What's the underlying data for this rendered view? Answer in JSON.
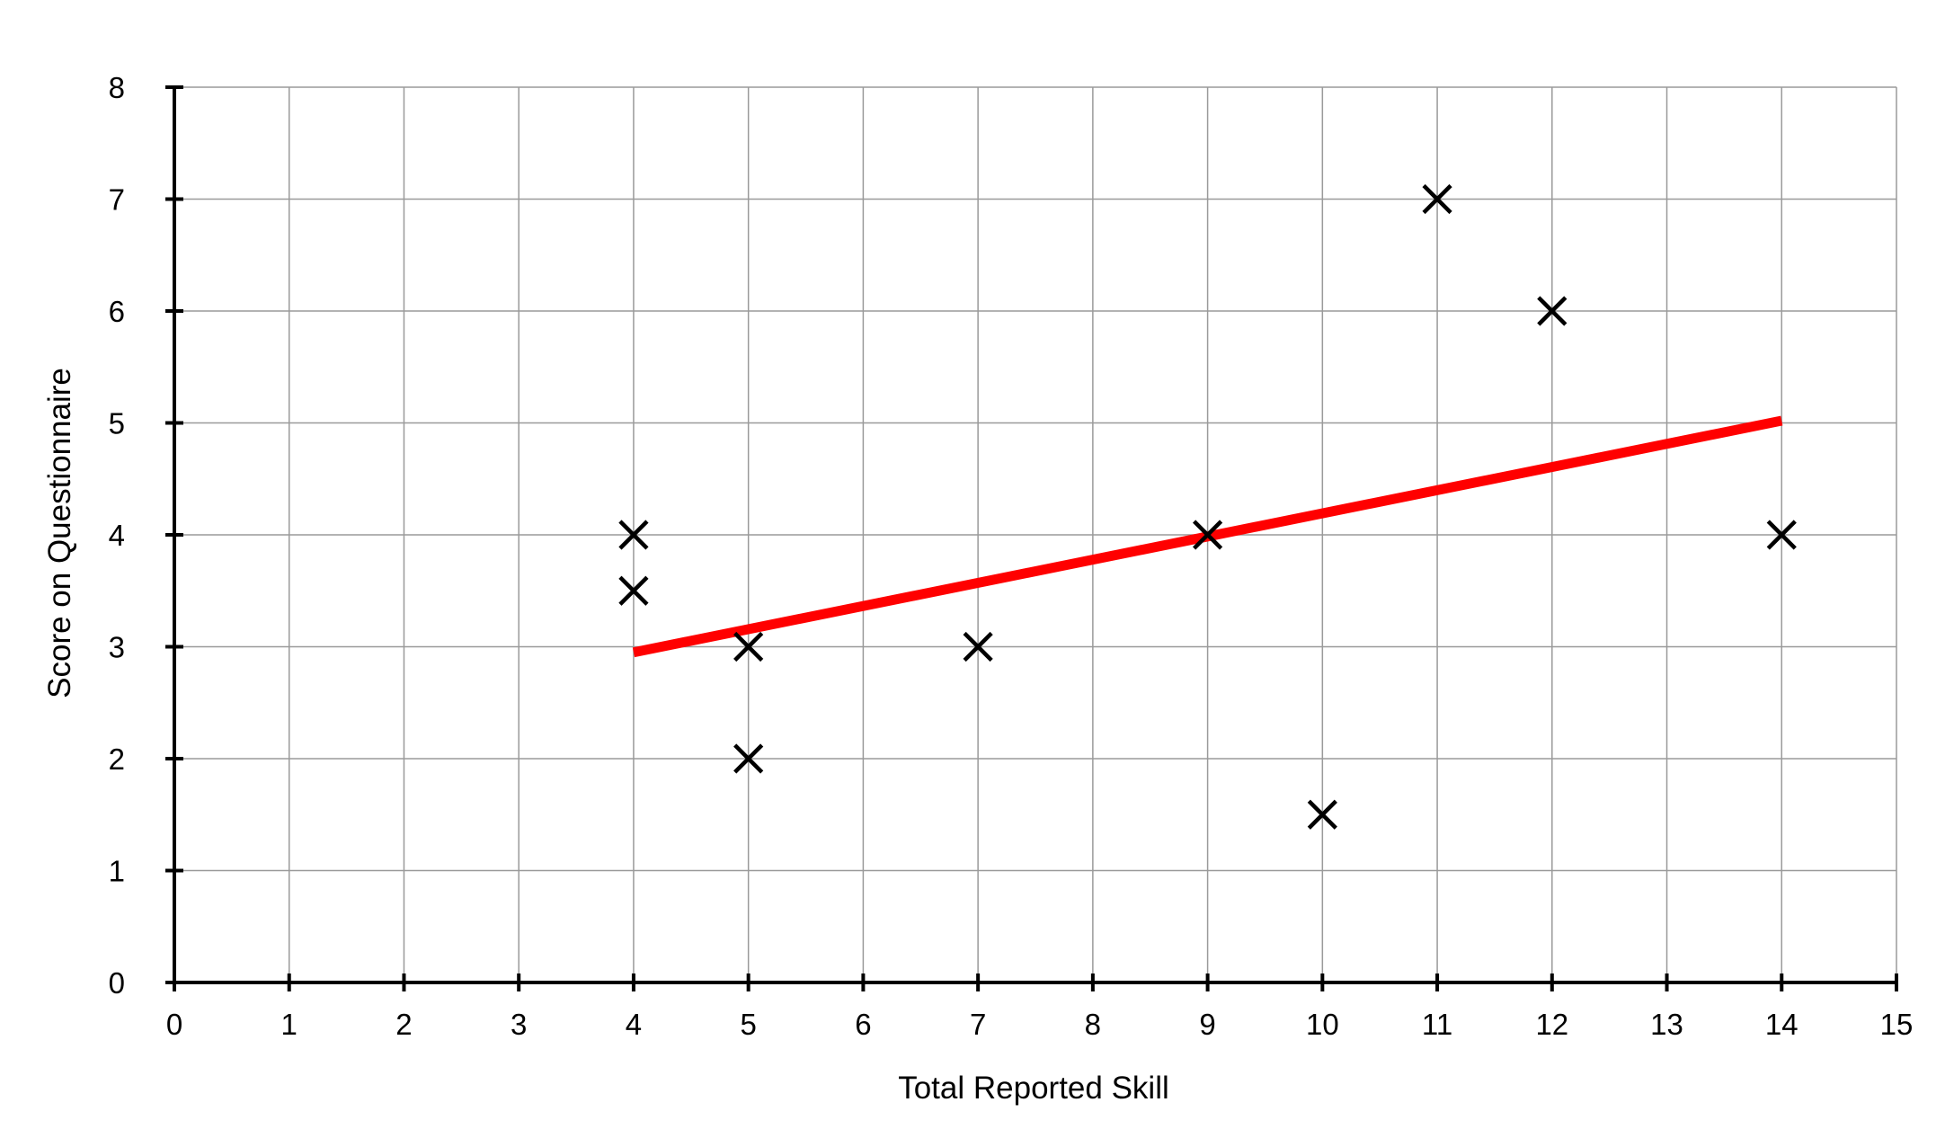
{
  "chart_data": {
    "type": "scatter",
    "title": "",
    "xlabel": "Total Reported Skill",
    "ylabel": "Score on Questionnaire",
    "xlim": [
      0,
      15
    ],
    "ylim": [
      0,
      8
    ],
    "xticks": [
      "0",
      "1",
      "2",
      "3",
      "4",
      "5",
      "6",
      "7",
      "8",
      "9",
      "10",
      "11",
      "12",
      "13",
      "14",
      "15"
    ],
    "yticks": [
      "0",
      "1",
      "2",
      "3",
      "4",
      "5",
      "6",
      "7",
      "8"
    ],
    "grid": true,
    "marker": "x",
    "points": [
      {
        "x": 4,
        "y": 4
      },
      {
        "x": 4,
        "y": 3.5
      },
      {
        "x": 5,
        "y": 3
      },
      {
        "x": 5,
        "y": 2
      },
      {
        "x": 7,
        "y": 3
      },
      {
        "x": 9,
        "y": 4
      },
      {
        "x": 10,
        "y": 1.5
      },
      {
        "x": 11,
        "y": 7
      },
      {
        "x": 12,
        "y": 6
      },
      {
        "x": 14,
        "y": 4
      }
    ],
    "trendline": {
      "x": [
        4,
        14
      ],
      "y": [
        2.95,
        5.02
      ],
      "color": "#ff0000"
    },
    "colors": {
      "marker": "#000000",
      "grid": "#9a9a9a",
      "axis": "#000000",
      "trendline": "#ff0000"
    }
  }
}
